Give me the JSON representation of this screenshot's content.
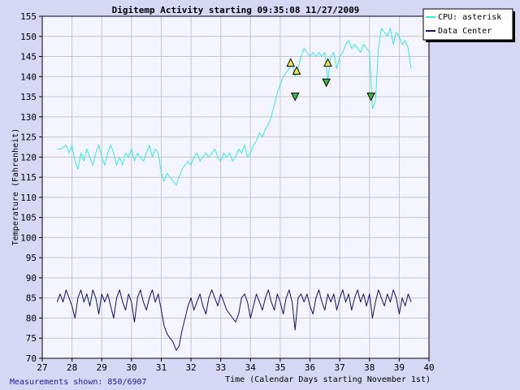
{
  "chart_data": {
    "type": "line",
    "title": "Digitemp Activity starting 09:35:08 11/27/2009",
    "xlabel": "Time (Calendar Days starting November 1st)",
    "ylabel": "Temperature (Fahrenheit)",
    "xlim": [
      27,
      40
    ],
    "ylim": [
      70,
      155
    ],
    "xticks": [
      27,
      28,
      29,
      30,
      31,
      32,
      33,
      34,
      35,
      36,
      37,
      38,
      39,
      40
    ],
    "yticks": [
      70,
      75,
      80,
      85,
      90,
      95,
      100,
      105,
      110,
      115,
      120,
      125,
      130,
      135,
      140,
      145,
      150,
      155
    ],
    "grid": true,
    "legend_position": "top-right",
    "footnote": "Measurements shown: 850/6907",
    "series": [
      {
        "name": "CPU: asterisk",
        "color": "#33e8e8",
        "points": [
          [
            27.5,
            122
          ],
          [
            27.65,
            122
          ],
          [
            27.8,
            123
          ],
          [
            27.9,
            121
          ],
          [
            28.0,
            123
          ],
          [
            28.1,
            119
          ],
          [
            28.2,
            117
          ],
          [
            28.3,
            121
          ],
          [
            28.4,
            119
          ],
          [
            28.5,
            122
          ],
          [
            28.6,
            120
          ],
          [
            28.7,
            118
          ],
          [
            28.8,
            121
          ],
          [
            28.9,
            123
          ],
          [
            29.0,
            120
          ],
          [
            29.1,
            118
          ],
          [
            29.2,
            121
          ],
          [
            29.3,
            123
          ],
          [
            29.4,
            121
          ],
          [
            29.5,
            118
          ],
          [
            29.6,
            120
          ],
          [
            29.7,
            118
          ],
          [
            29.8,
            121
          ],
          [
            29.9,
            120
          ],
          [
            30.0,
            122
          ],
          [
            30.1,
            119
          ],
          [
            30.2,
            121
          ],
          [
            30.3,
            120
          ],
          [
            30.4,
            119
          ],
          [
            30.5,
            121
          ],
          [
            30.6,
            123
          ],
          [
            30.7,
            120
          ],
          [
            30.8,
            122
          ],
          [
            30.9,
            121
          ],
          [
            31.0,
            116
          ],
          [
            31.1,
            114
          ],
          [
            31.2,
            116
          ],
          [
            31.3,
            115
          ],
          [
            31.4,
            114
          ],
          [
            31.5,
            113
          ],
          [
            31.6,
            115
          ],
          [
            31.7,
            117
          ],
          [
            31.8,
            118
          ],
          [
            31.9,
            119
          ],
          [
            32.0,
            118
          ],
          [
            32.1,
            120
          ],
          [
            32.2,
            121
          ],
          [
            32.3,
            119
          ],
          [
            32.4,
            120
          ],
          [
            32.5,
            121
          ],
          [
            32.6,
            120
          ],
          [
            32.7,
            121
          ],
          [
            32.8,
            122
          ],
          [
            32.9,
            120
          ],
          [
            33.0,
            119
          ],
          [
            33.1,
            121
          ],
          [
            33.2,
            120
          ],
          [
            33.3,
            121
          ],
          [
            33.4,
            119
          ],
          [
            33.5,
            120
          ],
          [
            33.6,
            122
          ],
          [
            33.7,
            121
          ],
          [
            33.8,
            123
          ],
          [
            33.9,
            120
          ],
          [
            34.0,
            121
          ],
          [
            34.1,
            123
          ],
          [
            34.2,
            124
          ],
          [
            34.3,
            126
          ],
          [
            34.4,
            125
          ],
          [
            34.5,
            127
          ],
          [
            34.6,
            128
          ],
          [
            34.7,
            130
          ],
          [
            34.8,
            133
          ],
          [
            34.9,
            136
          ],
          [
            35.0,
            138
          ],
          [
            35.1,
            140
          ],
          [
            35.2,
            141
          ],
          [
            35.3,
            142
          ],
          [
            35.4,
            143
          ],
          [
            35.5,
            140
          ],
          [
            35.6,
            142
          ],
          [
            35.7,
            145
          ],
          [
            35.8,
            147
          ],
          [
            35.9,
            146
          ],
          [
            36.0,
            145
          ],
          [
            36.1,
            146
          ],
          [
            36.2,
            145
          ],
          [
            36.3,
            146
          ],
          [
            36.4,
            145
          ],
          [
            36.5,
            146
          ],
          [
            36.6,
            139
          ],
          [
            36.7,
            145
          ],
          [
            36.8,
            146
          ],
          [
            36.9,
            142
          ],
          [
            37.0,
            145
          ],
          [
            37.1,
            146
          ],
          [
            37.2,
            148
          ],
          [
            37.3,
            149
          ],
          [
            37.4,
            147
          ],
          [
            37.5,
            148
          ],
          [
            37.6,
            147
          ],
          [
            37.7,
            146
          ],
          [
            37.8,
            148
          ],
          [
            37.9,
            147
          ],
          [
            38.0,
            146
          ],
          [
            38.1,
            132
          ],
          [
            38.2,
            134
          ],
          [
            38.3,
            147
          ],
          [
            38.4,
            152
          ],
          [
            38.5,
            151
          ],
          [
            38.6,
            150
          ],
          [
            38.7,
            152
          ],
          [
            38.8,
            148
          ],
          [
            38.9,
            151
          ],
          [
            39.0,
            150
          ],
          [
            39.1,
            148
          ],
          [
            39.2,
            149
          ],
          [
            39.3,
            147
          ],
          [
            39.4,
            142
          ]
        ]
      },
      {
        "name": "Data Center",
        "color": "#10106e",
        "points": [
          [
            27.5,
            84
          ],
          [
            27.6,
            86
          ],
          [
            27.7,
            84
          ],
          [
            27.8,
            87
          ],
          [
            27.9,
            85
          ],
          [
            28.0,
            83
          ],
          [
            28.1,
            80
          ],
          [
            28.2,
            85
          ],
          [
            28.3,
            87
          ],
          [
            28.4,
            84
          ],
          [
            28.5,
            86
          ],
          [
            28.6,
            83
          ],
          [
            28.7,
            87
          ],
          [
            28.8,
            85
          ],
          [
            28.9,
            81
          ],
          [
            29.0,
            86
          ],
          [
            29.1,
            84
          ],
          [
            29.2,
            86
          ],
          [
            29.3,
            83
          ],
          [
            29.4,
            80
          ],
          [
            29.5,
            85
          ],
          [
            29.6,
            87
          ],
          [
            29.7,
            84
          ],
          [
            29.8,
            82
          ],
          [
            29.9,
            86
          ],
          [
            30.0,
            84
          ],
          [
            30.1,
            79
          ],
          [
            30.2,
            85
          ],
          [
            30.3,
            87
          ],
          [
            30.4,
            84
          ],
          [
            30.5,
            82
          ],
          [
            30.6,
            85
          ],
          [
            30.7,
            87
          ],
          [
            30.8,
            84
          ],
          [
            30.9,
            86
          ],
          [
            31.0,
            82
          ],
          [
            31.1,
            78
          ],
          [
            31.2,
            76
          ],
          [
            31.3,
            75
          ],
          [
            31.4,
            74
          ],
          [
            31.5,
            72
          ],
          [
            31.6,
            73
          ],
          [
            31.7,
            77
          ],
          [
            31.8,
            80
          ],
          [
            31.9,
            83
          ],
          [
            32.0,
            85
          ],
          [
            32.1,
            82
          ],
          [
            32.2,
            84
          ],
          [
            32.3,
            86
          ],
          [
            32.4,
            83
          ],
          [
            32.5,
            81
          ],
          [
            32.6,
            85
          ],
          [
            32.7,
            87
          ],
          [
            32.8,
            85
          ],
          [
            32.9,
            83
          ],
          [
            33.0,
            86
          ],
          [
            33.1,
            84
          ],
          [
            33.2,
            82
          ],
          [
            33.3,
            81
          ],
          [
            33.4,
            80
          ],
          [
            33.5,
            79
          ],
          [
            33.6,
            81
          ],
          [
            33.7,
            85
          ],
          [
            33.8,
            86
          ],
          [
            33.9,
            84
          ],
          [
            34.0,
            80
          ],
          [
            34.1,
            83
          ],
          [
            34.2,
            86
          ],
          [
            34.3,
            84
          ],
          [
            34.4,
            82
          ],
          [
            34.5,
            85
          ],
          [
            34.6,
            87
          ],
          [
            34.7,
            84
          ],
          [
            34.8,
            82
          ],
          [
            34.9,
            86
          ],
          [
            35.0,
            84
          ],
          [
            35.1,
            81
          ],
          [
            35.2,
            85
          ],
          [
            35.3,
            87
          ],
          [
            35.4,
            84
          ],
          [
            35.5,
            77
          ],
          [
            35.6,
            85
          ],
          [
            35.7,
            86
          ],
          [
            35.8,
            84
          ],
          [
            35.9,
            86
          ],
          [
            36.0,
            83
          ],
          [
            36.1,
            81
          ],
          [
            36.2,
            85
          ],
          [
            36.3,
            87
          ],
          [
            36.4,
            84
          ],
          [
            36.5,
            82
          ],
          [
            36.6,
            86
          ],
          [
            36.7,
            84
          ],
          [
            36.8,
            86
          ],
          [
            36.9,
            82
          ],
          [
            37.0,
            85
          ],
          [
            37.1,
            87
          ],
          [
            37.2,
            84
          ],
          [
            37.3,
            86
          ],
          [
            37.4,
            82
          ],
          [
            37.5,
            85
          ],
          [
            37.6,
            87
          ],
          [
            37.7,
            84
          ],
          [
            37.8,
            86
          ],
          [
            37.9,
            83
          ],
          [
            38.0,
            86
          ],
          [
            38.1,
            80
          ],
          [
            38.2,
            84
          ],
          [
            38.3,
            87
          ],
          [
            38.4,
            85
          ],
          [
            38.5,
            83
          ],
          [
            38.6,
            86
          ],
          [
            38.7,
            84
          ],
          [
            38.8,
            87
          ],
          [
            38.9,
            85
          ],
          [
            39.0,
            81
          ],
          [
            39.1,
            85
          ],
          [
            39.2,
            83
          ],
          [
            39.3,
            86
          ],
          [
            39.4,
            84
          ]
        ]
      }
    ],
    "markers": [
      {
        "x": 35.35,
        "y": 143.5,
        "direction": "up",
        "color": "#e8e84a"
      },
      {
        "x": 35.55,
        "y": 141.5,
        "direction": "up",
        "color": "#e8e84a"
      },
      {
        "x": 35.5,
        "y": 135.0,
        "direction": "down",
        "color": "#3ab83a"
      },
      {
        "x": 36.6,
        "y": 143.5,
        "direction": "up",
        "color": "#e8e84a"
      },
      {
        "x": 36.55,
        "y": 138.5,
        "direction": "down",
        "color": "#3ab83a"
      },
      {
        "x": 38.05,
        "y": 135.0,
        "direction": "down",
        "color": "#3ab83a"
      }
    ]
  }
}
